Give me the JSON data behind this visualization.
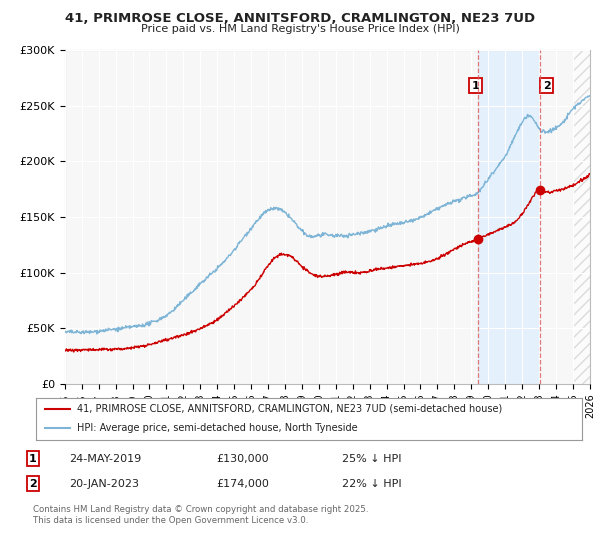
{
  "title1": "41, PRIMROSE CLOSE, ANNITSFORD, CRAMLINGTON, NE23 7UD",
  "title2": "Price paid vs. HM Land Registry's House Price Index (HPI)",
  "legend_line1": "41, PRIMROSE CLOSE, ANNITSFORD, CRAMLINGTON, NE23 7UD (semi-detached house)",
  "legend_line2": "HPI: Average price, semi-detached house, North Tyneside",
  "footnote": "Contains HM Land Registry data © Crown copyright and database right 2025.\nThis data is licensed under the Open Government Licence v3.0.",
  "transaction1_date": "24-MAY-2019",
  "transaction1_price": "£130,000",
  "transaction1_hpi": "25% ↓ HPI",
  "transaction2_date": "20-JAN-2023",
  "transaction2_price": "£174,000",
  "transaction2_hpi": "22% ↓ HPI",
  "marker1_x": 2019.4,
  "marker2_x": 2023.05,
  "marker1_y_red": 130000,
  "marker2_y_red": 174000,
  "hpi_color": "#7eb5d6",
  "price_color": "#cc0000",
  "vline_color": "#e06060",
  "shade_color": "#ddeeff",
  "background_color": "#ffffff",
  "plot_bg_color": "#f7f7f7",
  "grid_color": "#ffffff",
  "xmin": 1995,
  "xmax": 2026,
  "ymin": 0,
  "ymax": 300000
}
